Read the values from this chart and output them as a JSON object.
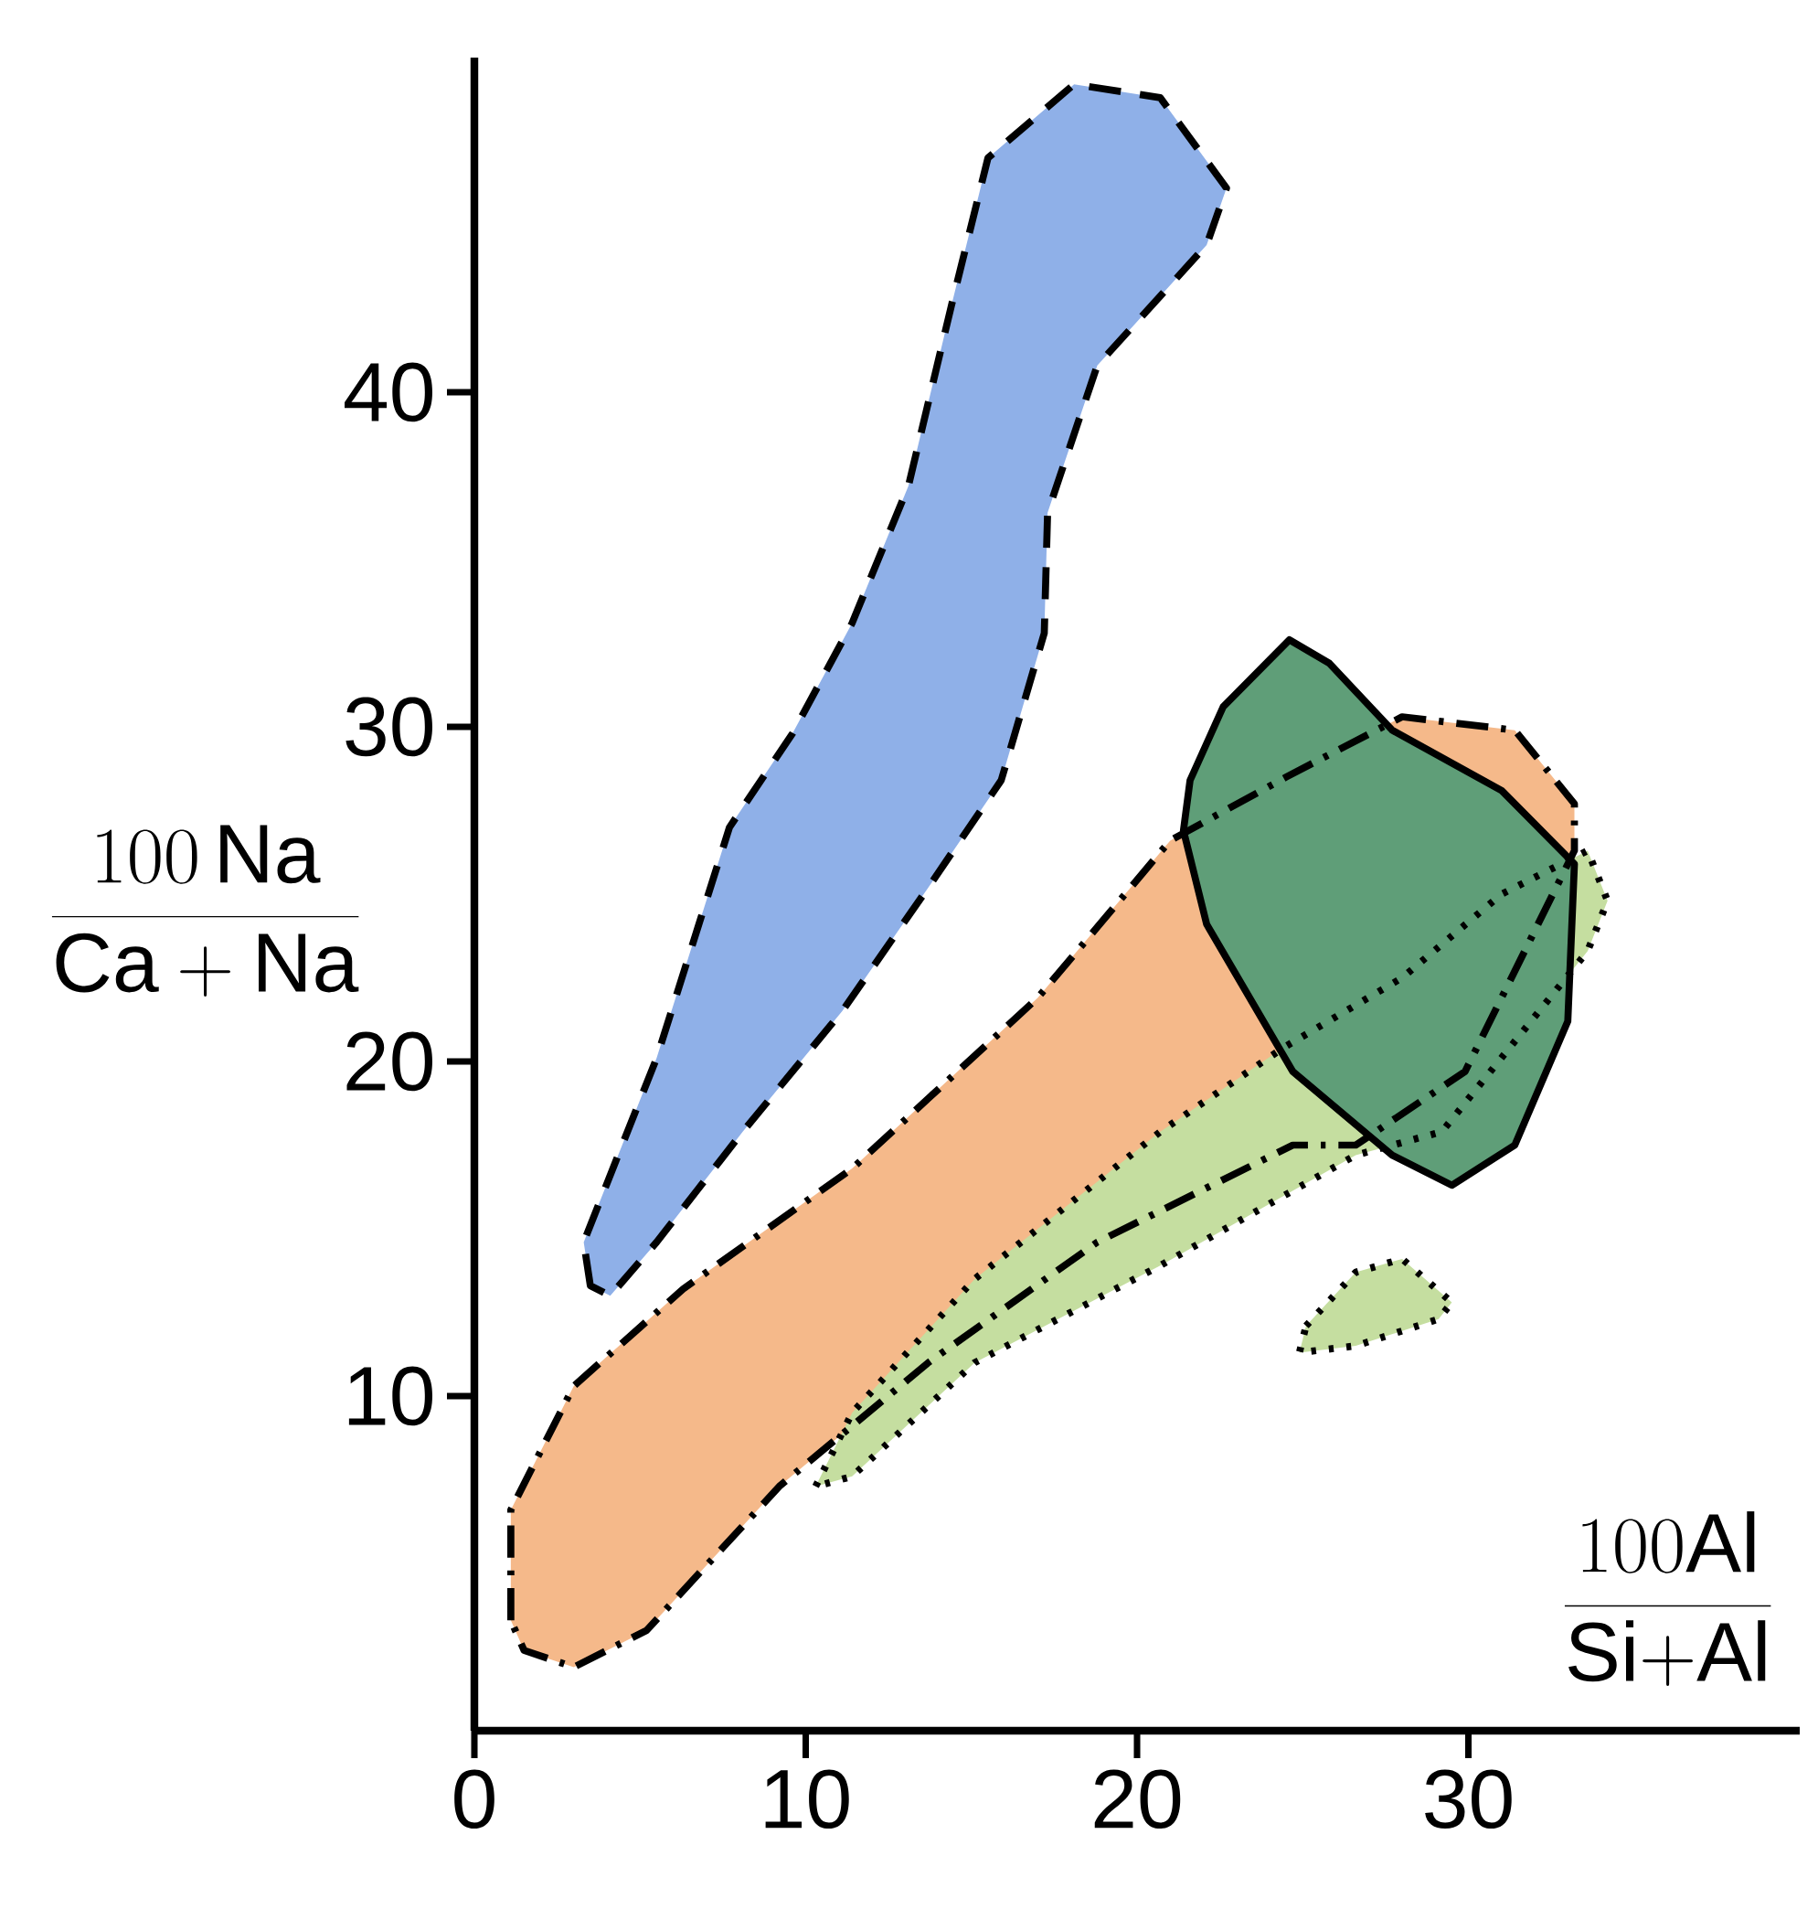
{
  "chart_data": {
    "type": "area",
    "xlabel": "\\frac{100\\mathrm{Al}}{\\mathrm{Si{+}Al}}",
    "ylabel": "\\frac{100\\,\\mathrm{Na}}{\\mathrm{Ca}+\\mathrm{Na}}",
    "xlim": [
      0,
      40
    ],
    "ylim": [
      0,
      50
    ],
    "xticks": [
      0,
      10,
      20,
      30
    ],
    "yticks": [
      10,
      20,
      30,
      40
    ],
    "grid": false,
    "marker": "none",
    "series": [
      {
        "color": "#8fb0e8",
        "line_style": "dashed",
        "x": [
          3.5,
          3.3,
          5.5,
          7.7,
          9.6,
          11.4,
          13.1,
          14.4,
          15.5,
          18.1,
          20.7,
          22.7,
          22.1,
          18.8,
          17.3,
          17.2,
          15.9,
          13.7,
          11.1,
          8.1,
          5.5,
          4.1
        ],
        "values": [
          13.3,
          14.6,
          20.1,
          27,
          29.8,
          33.1,
          37.2,
          42.6,
          47,
          49.2,
          48.8,
          46.1,
          44.4,
          40.8,
          36.4,
          32.8,
          28.4,
          25.2,
          21.5,
          17.9,
          14.6,
          13
        ]
      },
      {
        "color": "#f5b98a",
        "line_style": "dashdot",
        "x": [
          1.1,
          1.1,
          3,
          6.3,
          11.4,
          17,
          21,
          24.5,
          28,
          31.4,
          33.2,
          33.2,
          29.9,
          26.6,
          24.7,
          18.8,
          13.7,
          9.2,
          5.2,
          3,
          1.5
        ],
        "values": [
          3.3,
          6.6,
          10.3,
          13.2,
          16.8,
          21.9,
          26.6,
          28.5,
          30.3,
          29.9,
          27.7,
          26.3,
          19.7,
          17.5,
          17.5,
          14.6,
          11,
          7.3,
          3,
          1.9,
          2.4
        ]
      },
      {
        "color": "#c5dea0",
        "line_style": "dotted",
        "x": [
          10.3,
          11.4,
          15.1,
          20.7,
          24.4,
          28,
          31,
          33.6,
          34.2,
          33.6,
          29.2,
          26.6,
          20.7,
          15.1,
          11.4
        ],
        "values": [
          7.3,
          9.5,
          13.5,
          17.9,
          20.4,
          22.5,
          25,
          26.3,
          24.8,
          23.3,
          17.9,
          17.2,
          13.9,
          11,
          7.6
        ]
      },
      {
        "color": "#c5dea0",
        "line_style": "dotted",
        "x": [
          25.1,
          26.6,
          28,
          29.5,
          29.1,
          26.6,
          24.9
        ],
        "values": [
          12.1,
          13.7,
          14.1,
          12.8,
          12.3,
          11.5,
          11.3
        ]
      },
      {
        "color": "#5f9e78",
        "line_style": "solid",
        "x": [
          21.6,
          22.6,
          24.6,
          25.8,
          27.7,
          31,
          33.2,
          33,
          31.4,
          29.5,
          27.7,
          24.7,
          22.1,
          21.4
        ],
        "values": [
          28.4,
          30.6,
          32.6,
          31.9,
          29.9,
          28.1,
          25.9,
          21.2,
          17.5,
          16.3,
          17.2,
          19.7,
          24.1,
          26.9
        ]
      }
    ]
  }
}
